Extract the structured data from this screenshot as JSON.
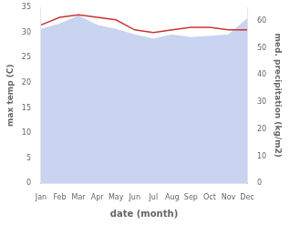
{
  "chart_data": {
    "type": "line",
    "xlabel": "date (month)",
    "ylabel": "max temp (C)",
    "y2label": "med. precipitation (kg/m2)",
    "categories": [
      "Jan",
      "Feb",
      "Mar",
      "Apr",
      "May",
      "Jun",
      "Jul",
      "Aug",
      "Sep",
      "Oct",
      "Nov",
      "Dec"
    ],
    "series": [
      {
        "type": "area",
        "axis": "y2",
        "color": "#c8d4f0",
        "values": [
          57.0,
          59.0,
          62.0,
          58.5,
          57.0,
          55.0,
          53.5,
          55.0,
          54.0,
          54.5,
          55.0,
          61.0
        ]
      },
      {
        "type": "line",
        "color": "#cc3333",
        "values": [
          31.5,
          33.0,
          33.5,
          33.0,
          32.5,
          30.5,
          30.0,
          30.5,
          31.0,
          31.0,
          30.5,
          30.5
        ]
      }
    ],
    "ylim": [
      0,
      35
    ],
    "yticks": [
      0,
      5,
      10,
      15,
      20,
      25,
      30,
      35
    ],
    "y2lim": [
      0,
      65
    ],
    "y2ticks": [
      0,
      10,
      20,
      30,
      40,
      50,
      60
    ],
    "grid": false
  }
}
